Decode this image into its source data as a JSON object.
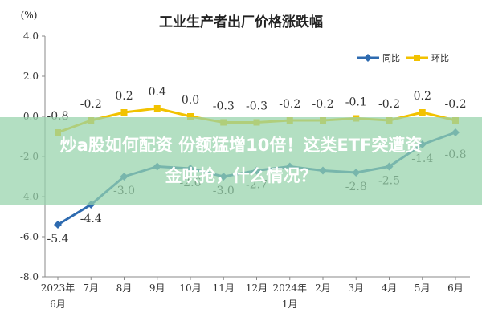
{
  "chart_data": {
    "type": "line",
    "title": "工业生产者出厂价格涨跌幅",
    "ylabel": "(%)",
    "xlabel": "",
    "ylim": [
      -8.0,
      4.0
    ],
    "yticks": [
      "4.0",
      "2.0",
      "0.0",
      "-2.0",
      "-4.0",
      "-6.0",
      "-8.0"
    ],
    "ytick_values": [
      4,
      2,
      0,
      -2,
      -4,
      -6,
      -8
    ],
    "categories": [
      "2023年6月",
      "7月",
      "8月",
      "9月",
      "10月",
      "11月",
      "12月",
      "2024年1月",
      "2月",
      "3月",
      "4月",
      "5月",
      "6月"
    ],
    "category_lines": [
      [
        "2023年",
        "6月"
      ],
      [
        "7月"
      ],
      [
        "8月"
      ],
      [
        "9月"
      ],
      [
        "10月"
      ],
      [
        "11月"
      ],
      [
        "12月"
      ],
      [
        "2024年",
        "1月"
      ],
      [
        "2月"
      ],
      [
        "3月"
      ],
      [
        "4月"
      ],
      [
        "5月"
      ],
      [
        "6月"
      ]
    ],
    "series": [
      {
        "name": "同比",
        "color": "#2e6bb0",
        "values": [
          -5.4,
          -4.4,
          -3.0,
          -2.5,
          -2.6,
          -3.0,
          -2.7,
          -2.5,
          -2.7,
          -2.8,
          -2.5,
          -1.4,
          -0.8
        ],
        "labels": [
          "-5.4",
          "-4.4",
          "-3.0",
          "",
          "-2.6",
          "-3.0",
          "-2.7",
          "",
          "",
          "-2.8",
          "-2.5",
          "-1.4",
          "-0.8"
        ]
      },
      {
        "name": "环比",
        "color": "#f2c200",
        "values": [
          -0.8,
          -0.2,
          0.2,
          0.4,
          0.0,
          -0.3,
          -0.3,
          -0.2,
          -0.2,
          -0.1,
          -0.2,
          0.2,
          -0.2
        ],
        "labels": [
          "-0.8",
          "-0.2",
          "0.2",
          "0.4",
          "0.0",
          "-0.3",
          "-0.3",
          "-0.2",
          "-0.2",
          "-0.1",
          "-0.2",
          "0.2",
          "-0.2"
        ]
      }
    ],
    "legend": "top-right",
    "grid": false
  },
  "headline": {
    "line1": "炒a股如何配资 份额猛增10倍！这类ETF突遭资",
    "line2": "金哄抢，什么情况？"
  }
}
